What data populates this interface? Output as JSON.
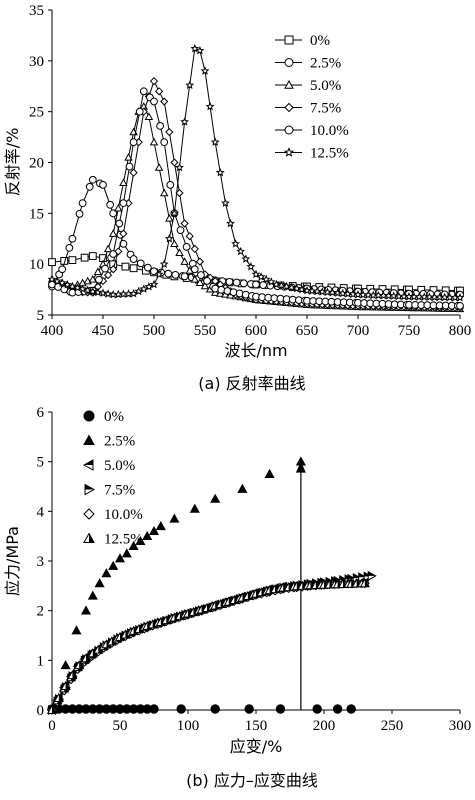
{
  "chart_data": [
    {
      "type": "line",
      "caption": "(a)  反射率曲线",
      "xlabel": "波长/nm",
      "ylabel": "反射率/%",
      "xlim": [
        400,
        800
      ],
      "ylim": [
        5,
        35
      ],
      "xticks": [
        "400",
        "450",
        "500",
        "550",
        "600",
        "650",
        "700",
        "750",
        "800"
      ],
      "yticks": [
        "5",
        "10",
        "15",
        "20",
        "25",
        "30",
        "35"
      ],
      "grid": false,
      "legend": "top-right",
      "series": [
        {
          "name": "0%",
          "marker": "square",
          "x": [
            400,
            420,
            440,
            450,
            460,
            480,
            500,
            520,
            550,
            600,
            650,
            700,
            750,
            800
          ],
          "y": [
            10.2,
            10.4,
            10.8,
            10.6,
            10.0,
            9.6,
            9.2,
            8.8,
            8.4,
            8.0,
            7.8,
            7.6,
            7.5,
            7.4
          ]
        },
        {
          "name": "2.5%",
          "marker": "circle",
          "x": [
            400,
            410,
            420,
            430,
            440,
            450,
            460,
            470,
            480,
            500,
            530,
            560,
            600,
            650,
            700,
            750,
            800
          ],
          "y": [
            7.8,
            9.5,
            12.5,
            16.0,
            18.3,
            17.8,
            15.0,
            12.0,
            10.5,
            9.3,
            8.8,
            8.4,
            8.0,
            7.6,
            7.3,
            7.1,
            7.0
          ]
        },
        {
          "name": "5.0%",
          "marker": "triangle",
          "x": [
            400,
            420,
            440,
            450,
            460,
            470,
            480,
            485,
            490,
            495,
            500,
            510,
            520,
            540,
            560,
            600,
            650,
            700,
            750,
            800
          ],
          "y": [
            8.5,
            7.8,
            8.5,
            10.0,
            13.0,
            18.0,
            23.0,
            25.0,
            25.5,
            24.5,
            22.0,
            17.0,
            12.0,
            8.5,
            7.2,
            6.5,
            6.0,
            5.8,
            5.7,
            5.6
          ]
        },
        {
          "name": "7.5%",
          "marker": "diamond",
          "x": [
            400,
            420,
            440,
            460,
            470,
            480,
            490,
            500,
            510,
            520,
            530,
            550,
            580,
            600,
            650,
            700,
            750,
            800
          ],
          "y": [
            8.0,
            7.3,
            7.2,
            9.5,
            13.0,
            19.0,
            25.0,
            28.0,
            26.0,
            20.0,
            14.0,
            9.0,
            7.0,
            6.5,
            6.1,
            5.9,
            5.8,
            5.7
          ]
        },
        {
          "name": "10.0%",
          "marker": "circle",
          "x": [
            400,
            420,
            440,
            460,
            470,
            480,
            490,
            500,
            510,
            520,
            540,
            560,
            600,
            650,
            700,
            750,
            800
          ],
          "y": [
            8.0,
            7.2,
            7.4,
            11.0,
            16.0,
            22.0,
            27.0,
            26.0,
            22.0,
            15.0,
            9.5,
            7.6,
            6.8,
            6.4,
            6.2,
            6.0,
            5.9
          ]
        },
        {
          "name": "12.5%",
          "marker": "star",
          "x": [
            400,
            420,
            440,
            460,
            480,
            500,
            510,
            520,
            530,
            540,
            545,
            550,
            560,
            570,
            580,
            600,
            620,
            650,
            700,
            750,
            800
          ],
          "y": [
            8.5,
            7.8,
            7.3,
            7.0,
            7.1,
            8.0,
            10.0,
            15.0,
            24.0,
            31.2,
            31.0,
            29.0,
            22.0,
            16.0,
            12.0,
            9.0,
            8.0,
            7.4,
            7.0,
            6.8,
            6.7
          ]
        }
      ]
    },
    {
      "type": "scatter",
      "caption": "(b)  应力–应变曲线",
      "xlabel": "应变/%",
      "ylabel": "应力/MPa",
      "xlim": [
        0,
        300
      ],
      "ylim": [
        0,
        6
      ],
      "xticks": [
        "0",
        "50",
        "100",
        "150",
        "200",
        "250",
        "300"
      ],
      "yticks": [
        "0",
        "1",
        "2",
        "3",
        "4",
        "5",
        "6"
      ],
      "grid": false,
      "legend": "top-left",
      "series": [
        {
          "name": "0%",
          "marker": "circle-filled",
          "x": [
            0,
            5,
            10,
            15,
            20,
            25,
            30,
            35,
            40,
            45,
            50,
            55,
            60,
            65,
            70,
            75,
            95,
            120,
            145,
            168,
            195,
            210,
            220
          ],
          "y": [
            0.02,
            0.02,
            0.02,
            0.02,
            0.02,
            0.02,
            0.02,
            0.02,
            0.02,
            0.02,
            0.02,
            0.02,
            0.02,
            0.02,
            0.02,
            0.02,
            0.02,
            0.02,
            0.02,
            0.02,
            0.02,
            0.02,
            0.02
          ]
        },
        {
          "name": "2.5%",
          "marker": "triangle-filled",
          "x": [
            2,
            10,
            18,
            25,
            30,
            35,
            40,
            45,
            50,
            55,
            60,
            65,
            70,
            75,
            80,
            90,
            105,
            120,
            140,
            160,
            183
          ],
          "y": [
            0.1,
            0.9,
            1.6,
            2.0,
            2.3,
            2.55,
            2.75,
            2.9,
            3.05,
            3.15,
            3.3,
            3.4,
            3.5,
            3.6,
            3.7,
            3.85,
            4.05,
            4.25,
            4.45,
            4.75,
            5.0
          ]
        },
        {
          "name": "5.0%",
          "marker": "triangle-left",
          "x": [
            0,
            5,
            10,
            15,
            20,
            25,
            30,
            40,
            50,
            60,
            70,
            80,
            90,
            100,
            110,
            120,
            130,
            140,
            150,
            160,
            170,
            180,
            190,
            200,
            210,
            220,
            230
          ],
          "y": [
            0.0,
            0.25,
            0.5,
            0.72,
            0.92,
            1.05,
            1.15,
            1.33,
            1.48,
            1.6,
            1.7,
            1.78,
            1.87,
            1.95,
            2.03,
            2.12,
            2.2,
            2.28,
            2.36,
            2.43,
            2.48,
            2.5,
            2.52,
            2.53,
            2.55,
            2.56,
            2.57
          ]
        },
        {
          "name": "7.5%",
          "marker": "triangle-right",
          "x": [
            0,
            5,
            10,
            15,
            20,
            25,
            30,
            40,
            50,
            60,
            70,
            80,
            90,
            100,
            110,
            120,
            130,
            140,
            150,
            160,
            170,
            180,
            190,
            200,
            210,
            220,
            235
          ],
          "y": [
            0.0,
            0.22,
            0.46,
            0.68,
            0.88,
            1.02,
            1.12,
            1.3,
            1.45,
            1.57,
            1.67,
            1.76,
            1.85,
            1.93,
            2.0,
            2.08,
            2.16,
            2.25,
            2.32,
            2.4,
            2.46,
            2.5,
            2.54,
            2.57,
            2.6,
            2.64,
            2.7
          ]
        },
        {
          "name": "10.0%",
          "marker": "diamond",
          "x": [
            0,
            5,
            10,
            15,
            20,
            25,
            30,
            40,
            50,
            60,
            70,
            80,
            90,
            100,
            110,
            120,
            130,
            140,
            150,
            160,
            170,
            180,
            190,
            200,
            210,
            220,
            230
          ],
          "y": [
            0.0,
            0.2,
            0.44,
            0.66,
            0.86,
            1.0,
            1.1,
            1.29,
            1.44,
            1.56,
            1.66,
            1.75,
            1.84,
            1.92,
            2.0,
            2.08,
            2.16,
            2.24,
            2.32,
            2.38,
            2.44,
            2.47,
            2.5,
            2.52,
            2.54,
            2.55,
            2.55
          ]
        },
        {
          "name": "12.5%",
          "marker": "triangle-half",
          "x": [
            0,
            5,
            10,
            15,
            20,
            25,
            30,
            40,
            50,
            60,
            70,
            80,
            90,
            100,
            110,
            120,
            130,
            140,
            150,
            160,
            170,
            180,
            190,
            200,
            210,
            220,
            230
          ],
          "y": [
            0.0,
            0.24,
            0.48,
            0.7,
            0.9,
            1.04,
            1.14,
            1.32,
            1.47,
            1.59,
            1.69,
            1.77,
            1.86,
            1.94,
            2.02,
            2.1,
            2.18,
            2.26,
            2.34,
            2.41,
            2.46,
            2.49,
            2.51,
            2.52,
            2.53,
            2.54,
            2.55
          ]
        }
      ],
      "annotations": [
        {
          "type": "arrow-vertical",
          "x": 183,
          "y_from": 0,
          "y_to": 5.0
        }
      ]
    }
  ]
}
